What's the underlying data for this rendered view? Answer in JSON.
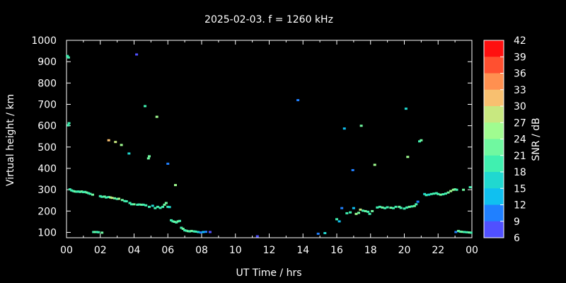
{
  "chart_data": {
    "type": "scatter",
    "title": "2025-02-03. f = 1260 kHz",
    "xlabel": "UT Time / hrs",
    "ylabel": "Virtual height / km",
    "xlim": [
      0,
      24
    ],
    "ylim": [
      75,
      1000
    ],
    "x_tick_labels": [
      "00",
      "02",
      "04",
      "06",
      "08",
      "10",
      "12",
      "14",
      "16",
      "18",
      "20",
      "22",
      "00"
    ],
    "y_ticks": [
      100,
      200,
      300,
      400,
      500,
      600,
      700,
      800,
      900,
      1000
    ],
    "colorbar": {
      "label": "SNR / dB",
      "range": [
        6,
        42
      ],
      "ticks": [
        6,
        9,
        12,
        15,
        18,
        21,
        24,
        27,
        30,
        33,
        36,
        39,
        42
      ],
      "colors": [
        "#8800ff",
        "#5050ff",
        "#2080ff",
        "#10c0f0",
        "#20d8d0",
        "#40f0b0",
        "#70f8a0",
        "#a0fc90",
        "#c8e880",
        "#f8c070",
        "#ff9050",
        "#ff5030",
        "#ff1010"
      ]
    },
    "points": [
      {
        "x": 0.05,
        "y": 925,
        "snr": 21
      },
      {
        "x": 0.12,
        "y": 918,
        "snr": 21
      },
      {
        "x": 0.15,
        "y": 610,
        "snr": 22
      },
      {
        "x": 0.1,
        "y": 600,
        "snr": 20
      },
      {
        "x": 0.2,
        "y": 300,
        "snr": 21
      },
      {
        "x": 0.3,
        "y": 295,
        "snr": 22
      },
      {
        "x": 0.4,
        "y": 292,
        "snr": 21
      },
      {
        "x": 0.5,
        "y": 290,
        "snr": 23
      },
      {
        "x": 0.6,
        "y": 289,
        "snr": 22
      },
      {
        "x": 0.7,
        "y": 290,
        "snr": 21
      },
      {
        "x": 0.8,
        "y": 288,
        "snr": 22
      },
      {
        "x": 0.9,
        "y": 290,
        "snr": 23
      },
      {
        "x": 1.0,
        "y": 287,
        "snr": 21
      },
      {
        "x": 1.1,
        "y": 288,
        "snr": 22
      },
      {
        "x": 1.2,
        "y": 285,
        "snr": 23
      },
      {
        "x": 1.3,
        "y": 282,
        "snr": 22
      },
      {
        "x": 1.4,
        "y": 279,
        "snr": 21
      },
      {
        "x": 1.55,
        "y": 275,
        "snr": 24
      },
      {
        "x": 1.6,
        "y": 100,
        "snr": 22
      },
      {
        "x": 1.7,
        "y": 100,
        "snr": 23
      },
      {
        "x": 1.8,
        "y": 100,
        "snr": 22
      },
      {
        "x": 1.9,
        "y": 99,
        "snr": 21
      },
      {
        "x": 2.1,
        "y": 97,
        "snr": 23
      },
      {
        "x": 2.0,
        "y": 268,
        "snr": 21
      },
      {
        "x": 2.1,
        "y": 265,
        "snr": 22
      },
      {
        "x": 2.25,
        "y": 266,
        "snr": 23
      },
      {
        "x": 2.35,
        "y": 262,
        "snr": 21
      },
      {
        "x": 2.5,
        "y": 530,
        "snr": 34
      },
      {
        "x": 2.5,
        "y": 264,
        "snr": 22
      },
      {
        "x": 2.6,
        "y": 262,
        "snr": 27
      },
      {
        "x": 2.7,
        "y": 260,
        "snr": 29
      },
      {
        "x": 2.85,
        "y": 258,
        "snr": 24
      },
      {
        "x": 2.9,
        "y": 522,
        "snr": 30
      },
      {
        "x": 3.0,
        "y": 255,
        "snr": 22
      },
      {
        "x": 3.1,
        "y": 256,
        "snr": 26
      },
      {
        "x": 3.25,
        "y": 508,
        "snr": 28
      },
      {
        "x": 3.3,
        "y": 250,
        "snr": 23
      },
      {
        "x": 3.45,
        "y": 245,
        "snr": 20
      },
      {
        "x": 3.55,
        "y": 244,
        "snr": 22
      },
      {
        "x": 3.7,
        "y": 468,
        "snr": 17
      },
      {
        "x": 3.75,
        "y": 236,
        "snr": 21
      },
      {
        "x": 3.85,
        "y": 230,
        "snr": 22
      },
      {
        "x": 4.0,
        "y": 230,
        "snr": 23
      },
      {
        "x": 4.15,
        "y": 932,
        "snr": 10
      },
      {
        "x": 4.2,
        "y": 228,
        "snr": 21
      },
      {
        "x": 4.3,
        "y": 229,
        "snr": 22
      },
      {
        "x": 4.45,
        "y": 228,
        "snr": 23
      },
      {
        "x": 4.55,
        "y": 228,
        "snr": 22
      },
      {
        "x": 4.65,
        "y": 690,
        "snr": 20
      },
      {
        "x": 4.7,
        "y": 225,
        "snr": 21
      },
      {
        "x": 4.85,
        "y": 445,
        "snr": 24
      },
      {
        "x": 4.9,
        "y": 455,
        "snr": 25
      },
      {
        "x": 4.9,
        "y": 218,
        "snr": 22
      },
      {
        "x": 5.1,
        "y": 223,
        "snr": 19
      },
      {
        "x": 5.25,
        "y": 212,
        "snr": 21
      },
      {
        "x": 5.35,
        "y": 640,
        "snr": 28
      },
      {
        "x": 5.4,
        "y": 218,
        "snr": 22
      },
      {
        "x": 5.55,
        "y": 213,
        "snr": 21
      },
      {
        "x": 5.7,
        "y": 218,
        "snr": 22
      },
      {
        "x": 5.8,
        "y": 228,
        "snr": 24
      },
      {
        "x": 5.9,
        "y": 236,
        "snr": 23
      },
      {
        "x": 6.0,
        "y": 420,
        "snr": 12
      },
      {
        "x": 6.0,
        "y": 218,
        "snr": 22
      },
      {
        "x": 6.1,
        "y": 217,
        "snr": 19
      },
      {
        "x": 6.2,
        "y": 155,
        "snr": 22
      },
      {
        "x": 6.3,
        "y": 150,
        "snr": 21
      },
      {
        "x": 6.4,
        "y": 148,
        "snr": 23
      },
      {
        "x": 6.45,
        "y": 320,
        "snr": 28
      },
      {
        "x": 6.5,
        "y": 145,
        "snr": 22
      },
      {
        "x": 6.6,
        "y": 150,
        "snr": 24
      },
      {
        "x": 6.7,
        "y": 152,
        "snr": 22
      },
      {
        "x": 6.8,
        "y": 120,
        "snr": 21
      },
      {
        "x": 6.9,
        "y": 115,
        "snr": 23
      },
      {
        "x": 7.0,
        "y": 108,
        "snr": 22
      },
      {
        "x": 7.1,
        "y": 106,
        "snr": 21
      },
      {
        "x": 7.2,
        "y": 104,
        "snr": 23
      },
      {
        "x": 7.3,
        "y": 103,
        "snr": 22
      },
      {
        "x": 7.4,
        "y": 105,
        "snr": 24
      },
      {
        "x": 7.55,
        "y": 103,
        "snr": 21
      },
      {
        "x": 7.65,
        "y": 102,
        "snr": 22
      },
      {
        "x": 7.8,
        "y": 100,
        "snr": 18
      },
      {
        "x": 7.95,
        "y": 98,
        "snr": 12
      },
      {
        "x": 8.1,
        "y": 100,
        "snr": 15
      },
      {
        "x": 8.25,
        "y": 101,
        "snr": 12
      },
      {
        "x": 8.5,
        "y": 100,
        "snr": 10
      },
      {
        "x": 11.3,
        "y": 80,
        "snr": 9
      },
      {
        "x": 13.7,
        "y": 718,
        "snr": 11
      },
      {
        "x": 14.9,
        "y": 92,
        "snr": 12
      },
      {
        "x": 15.3,
        "y": 95,
        "snr": 19
      },
      {
        "x": 16.0,
        "y": 160,
        "snr": 20
      },
      {
        "x": 16.15,
        "y": 150,
        "snr": 15
      },
      {
        "x": 16.3,
        "y": 212,
        "snr": 12
      },
      {
        "x": 16.45,
        "y": 585,
        "snr": 14
      },
      {
        "x": 16.6,
        "y": 188,
        "snr": 20
      },
      {
        "x": 16.8,
        "y": 192,
        "snr": 22
      },
      {
        "x": 16.95,
        "y": 390,
        "snr": 11
      },
      {
        "x": 17.0,
        "y": 212,
        "snr": 16
      },
      {
        "x": 17.15,
        "y": 185,
        "snr": 28
      },
      {
        "x": 17.3,
        "y": 190,
        "snr": 24
      },
      {
        "x": 17.4,
        "y": 205,
        "snr": 30
      },
      {
        "x": 17.45,
        "y": 598,
        "snr": 23
      },
      {
        "x": 17.55,
        "y": 200,
        "snr": 22
      },
      {
        "x": 17.7,
        "y": 198,
        "snr": 23
      },
      {
        "x": 17.85,
        "y": 195,
        "snr": 21
      },
      {
        "x": 17.95,
        "y": 185,
        "snr": 22
      },
      {
        "x": 18.1,
        "y": 198,
        "snr": 24
      },
      {
        "x": 18.25,
        "y": 415,
        "snr": 27
      },
      {
        "x": 18.4,
        "y": 215,
        "snr": 22
      },
      {
        "x": 18.55,
        "y": 218,
        "snr": 21
      },
      {
        "x": 18.7,
        "y": 215,
        "snr": 23
      },
      {
        "x": 18.85,
        "y": 212,
        "snr": 22
      },
      {
        "x": 19.0,
        "y": 216,
        "snr": 21
      },
      {
        "x": 19.2,
        "y": 214,
        "snr": 23
      },
      {
        "x": 19.35,
        "y": 212,
        "snr": 22
      },
      {
        "x": 19.5,
        "y": 218,
        "snr": 21
      },
      {
        "x": 19.7,
        "y": 218,
        "snr": 24
      },
      {
        "x": 19.8,
        "y": 213,
        "snr": 22
      },
      {
        "x": 20.0,
        "y": 210,
        "snr": 21
      },
      {
        "x": 20.1,
        "y": 678,
        "snr": 18
      },
      {
        "x": 20.15,
        "y": 215,
        "snr": 22
      },
      {
        "x": 20.2,
        "y": 452,
        "snr": 28
      },
      {
        "x": 20.3,
        "y": 218,
        "snr": 23
      },
      {
        "x": 20.45,
        "y": 220,
        "snr": 22
      },
      {
        "x": 20.6,
        "y": 222,
        "snr": 24
      },
      {
        "x": 20.7,
        "y": 230,
        "snr": 21
      },
      {
        "x": 20.8,
        "y": 242,
        "snr": 12
      },
      {
        "x": 20.9,
        "y": 525,
        "snr": 22
      },
      {
        "x": 21.0,
        "y": 530,
        "snr": 24
      },
      {
        "x": 21.2,
        "y": 278,
        "snr": 18
      },
      {
        "x": 21.3,
        "y": 273,
        "snr": 20
      },
      {
        "x": 21.45,
        "y": 275,
        "snr": 19
      },
      {
        "x": 21.6,
        "y": 278,
        "snr": 21
      },
      {
        "x": 21.75,
        "y": 280,
        "snr": 20
      },
      {
        "x": 21.9,
        "y": 282,
        "snr": 22
      },
      {
        "x": 22.0,
        "y": 278,
        "snr": 21
      },
      {
        "x": 22.15,
        "y": 275,
        "snr": 23
      },
      {
        "x": 22.3,
        "y": 277,
        "snr": 21
      },
      {
        "x": 22.45,
        "y": 280,
        "snr": 22
      },
      {
        "x": 22.6,
        "y": 285,
        "snr": 24
      },
      {
        "x": 22.75,
        "y": 292,
        "snr": 26
      },
      {
        "x": 22.9,
        "y": 298,
        "snr": 28
      },
      {
        "x": 23.0,
        "y": 300,
        "snr": 24
      },
      {
        "x": 23.05,
        "y": 100,
        "snr": 12
      },
      {
        "x": 23.1,
        "y": 298,
        "snr": 22
      },
      {
        "x": 23.2,
        "y": 105,
        "snr": 25
      },
      {
        "x": 23.3,
        "y": 102,
        "snr": 22
      },
      {
        "x": 23.4,
        "y": 101,
        "snr": 23
      },
      {
        "x": 23.5,
        "y": 298,
        "snr": 23
      },
      {
        "x": 23.55,
        "y": 100,
        "snr": 21
      },
      {
        "x": 23.7,
        "y": 99,
        "snr": 22
      },
      {
        "x": 23.85,
        "y": 98,
        "snr": 23
      },
      {
        "x": 23.9,
        "y": 310,
        "snr": 22
      },
      {
        "x": 23.95,
        "y": 97,
        "snr": 22
      }
    ]
  }
}
